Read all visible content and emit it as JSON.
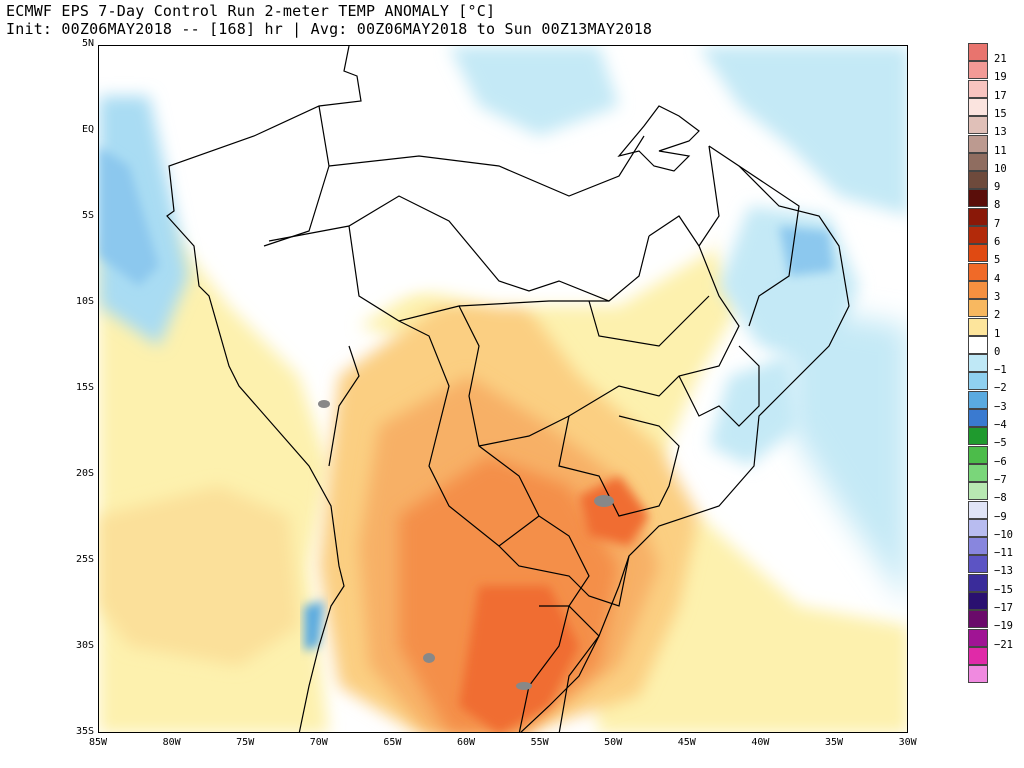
{
  "title": {
    "line1": "ECMWF EPS 7-Day Control Run 2-meter TEMP ANOMALY [°C]",
    "line2": "Init: 00Z06MAY2018 -- [168] hr | Avg: 00Z06MAY2018 to Sun 00Z13MAY2018"
  },
  "lat_labels": [
    "5N",
    "EQ",
    "5S",
    "10S",
    "15S",
    "20S",
    "25S",
    "30S",
    "35S"
  ],
  "lon_labels": [
    "85W",
    "80W",
    "75W",
    "70W",
    "65W",
    "60W",
    "55W",
    "50W",
    "45W",
    "40W",
    "35W",
    "30W"
  ],
  "colorbar": {
    "labels": [
      "21",
      "19",
      "17",
      "15",
      "13",
      "11",
      "10",
      "9",
      "8",
      "7",
      "6",
      "5",
      "4",
      "3",
      "2",
      "1",
      "0",
      "−1",
      "−2",
      "−3",
      "−4",
      "−5",
      "−6",
      "−7",
      "−8",
      "−9",
      "−10",
      "−11",
      "−13",
      "−15",
      "−17",
      "−19",
      "−21"
    ],
    "colors": [
      "#e8746e",
      "#f29a96",
      "#f8c4c0",
      "#fbe4df",
      "#e0c0b8",
      "#bc9a90",
      "#8f6d60",
      "#6e4a3c",
      "#5a0e0a",
      "#8a1808",
      "#b32a0a",
      "#e04a12",
      "#f06a28",
      "#f59040",
      "#f8b860",
      "#fde59c",
      "#ffffff",
      "#bfe8f6",
      "#8fd0f0",
      "#5aaae0",
      "#3a7ad0",
      "#1f9a2e",
      "#4cbc4a",
      "#7ad67a",
      "#b8e8b2",
      "#e0e4f6",
      "#b8bcf0",
      "#8886de",
      "#5c54c4",
      "#3a2c9a",
      "#2a1070",
      "#6a0a6a",
      "#a01494"
    ],
    "extra_colors": [
      "#e02aa8",
      "#f08ae0"
    ]
  }
}
